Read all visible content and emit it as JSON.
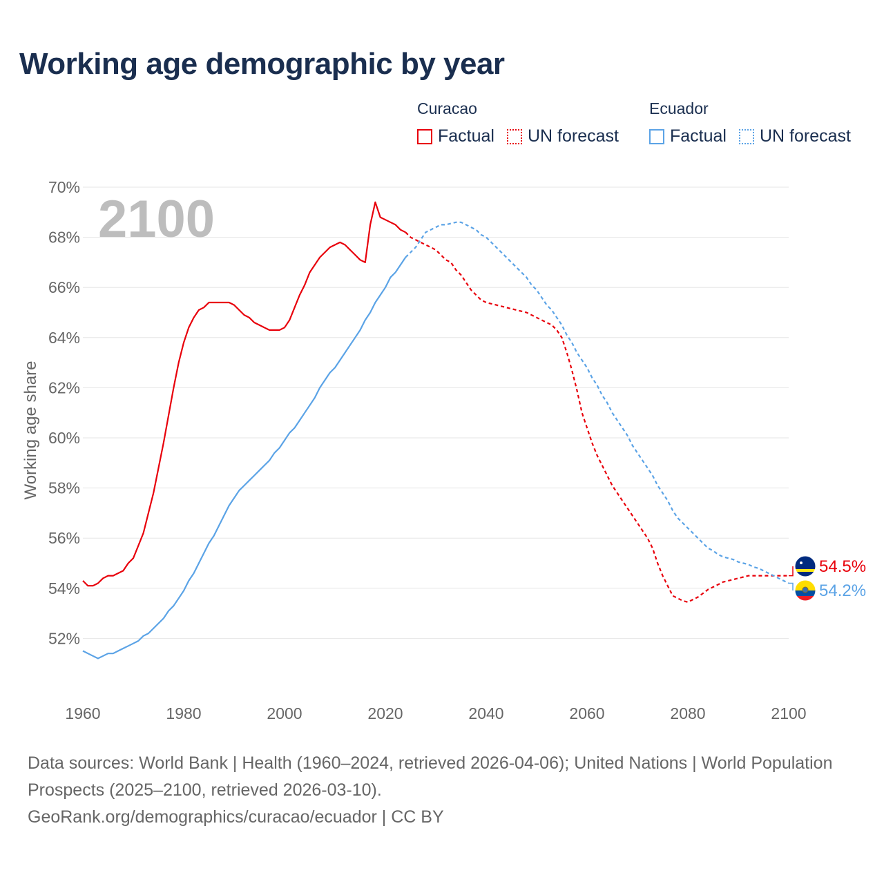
{
  "title": "Working age demographic by year",
  "legend": {
    "curacao": {
      "country": "Curacao",
      "factual": "Factual",
      "forecast": "UN forecast",
      "color": "#e8000b"
    },
    "ecuador": {
      "country": "Ecuador",
      "factual": "Factual",
      "forecast": "UN forecast",
      "color": "#5ba3e6"
    }
  },
  "year_label": "2100",
  "footer": {
    "sources": "Data sources: World Bank | Health (1960–2024, retrieved 2026-04-06); United Nations | World Population Prospects (2025–2100, retrieved 2026-03-10).",
    "link": "GeoRank.org/demographics/curacao/ecuador | CC BY"
  },
  "end_labels": {
    "curacao": "54.5%",
    "ecuador": "54.2%"
  },
  "chart_data": {
    "type": "line",
    "title": "Working age demographic by year",
    "xlabel": "",
    "ylabel": "Working age share",
    "xlim": [
      1960,
      2100
    ],
    "ylim": [
      50,
      70
    ],
    "x_ticks": [
      1960,
      1980,
      2000,
      2020,
      2040,
      2060,
      2080,
      2100
    ],
    "y_ticks": [
      52,
      54,
      56,
      58,
      60,
      62,
      64,
      66,
      68,
      70
    ],
    "y_tick_labels": [
      "52%",
      "54%",
      "56%",
      "58%",
      "60%",
      "62%",
      "64%",
      "66%",
      "68%",
      "70%"
    ],
    "forecast_start": 2024,
    "series": [
      {
        "name": "Curacao",
        "color": "#e8000b",
        "points": [
          [
            1960,
            54.3
          ],
          [
            1961,
            54.1
          ],
          [
            1962,
            54.1
          ],
          [
            1963,
            54.2
          ],
          [
            1964,
            54.4
          ],
          [
            1965,
            54.5
          ],
          [
            1966,
            54.5
          ],
          [
            1967,
            54.6
          ],
          [
            1968,
            54.7
          ],
          [
            1969,
            55.0
          ],
          [
            1970,
            55.2
          ],
          [
            1971,
            55.7
          ],
          [
            1972,
            56.2
          ],
          [
            1973,
            57.0
          ],
          [
            1974,
            57.8
          ],
          [
            1975,
            58.8
          ],
          [
            1976,
            59.8
          ],
          [
            1977,
            60.9
          ],
          [
            1978,
            62.0
          ],
          [
            1979,
            63.0
          ],
          [
            1980,
            63.8
          ],
          [
            1981,
            64.4
          ],
          [
            1982,
            64.8
          ],
          [
            1983,
            65.1
          ],
          [
            1984,
            65.2
          ],
          [
            1985,
            65.4
          ],
          [
            1986,
            65.4
          ],
          [
            1987,
            65.4
          ],
          [
            1988,
            65.4
          ],
          [
            1989,
            65.4
          ],
          [
            1990,
            65.3
          ],
          [
            1991,
            65.1
          ],
          [
            1992,
            64.9
          ],
          [
            1993,
            64.8
          ],
          [
            1994,
            64.6
          ],
          [
            1995,
            64.5
          ],
          [
            1996,
            64.4
          ],
          [
            1997,
            64.3
          ],
          [
            1998,
            64.3
          ],
          [
            1999,
            64.3
          ],
          [
            2000,
            64.4
          ],
          [
            2001,
            64.7
          ],
          [
            2002,
            65.2
          ],
          [
            2003,
            65.7
          ],
          [
            2004,
            66.1
          ],
          [
            2005,
            66.6
          ],
          [
            2006,
            66.9
          ],
          [
            2007,
            67.2
          ],
          [
            2008,
            67.4
          ],
          [
            2009,
            67.6
          ],
          [
            2010,
            67.7
          ],
          [
            2011,
            67.8
          ],
          [
            2012,
            67.7
          ],
          [
            2013,
            67.5
          ],
          [
            2014,
            67.3
          ],
          [
            2015,
            67.1
          ],
          [
            2016,
            67.0
          ],
          [
            2017,
            68.5
          ],
          [
            2018,
            69.4
          ],
          [
            2019,
            68.8
          ],
          [
            2020,
            68.7
          ],
          [
            2021,
            68.6
          ],
          [
            2022,
            68.5
          ],
          [
            2023,
            68.3
          ],
          [
            2024,
            68.2
          ],
          [
            2025,
            68.0
          ],
          [
            2026,
            67.9
          ],
          [
            2027,
            67.8
          ],
          [
            2028,
            67.7
          ],
          [
            2029,
            67.6
          ],
          [
            2030,
            67.5
          ],
          [
            2031,
            67.3
          ],
          [
            2032,
            67.1
          ],
          [
            2033,
            67.0
          ],
          [
            2034,
            66.7
          ],
          [
            2035,
            66.5
          ],
          [
            2036,
            66.2
          ],
          [
            2037,
            65.9
          ],
          [
            2038,
            65.7
          ],
          [
            2039,
            65.5
          ],
          [
            2040,
            65.4
          ],
          [
            2041,
            65.35
          ],
          [
            2042,
            65.3
          ],
          [
            2043,
            65.25
          ],
          [
            2044,
            65.2
          ],
          [
            2045,
            65.15
          ],
          [
            2046,
            65.1
          ],
          [
            2047,
            65.05
          ],
          [
            2048,
            65.0
          ],
          [
            2049,
            64.9
          ],
          [
            2050,
            64.8
          ],
          [
            2051,
            64.7
          ],
          [
            2052,
            64.6
          ],
          [
            2053,
            64.5
          ],
          [
            2054,
            64.3
          ],
          [
            2055,
            64.0
          ],
          [
            2056,
            63.4
          ],
          [
            2057,
            62.7
          ],
          [
            2058,
            61.9
          ],
          [
            2059,
            61.0
          ],
          [
            2060,
            60.4
          ],
          [
            2061,
            59.8
          ],
          [
            2062,
            59.3
          ],
          [
            2063,
            58.9
          ],
          [
            2064,
            58.5
          ],
          [
            2065,
            58.1
          ],
          [
            2066,
            57.8
          ],
          [
            2067,
            57.5
          ],
          [
            2068,
            57.2
          ],
          [
            2069,
            56.9
          ],
          [
            2070,
            56.6
          ],
          [
            2071,
            56.3
          ],
          [
            2072,
            56.0
          ],
          [
            2073,
            55.6
          ],
          [
            2074,
            55.0
          ],
          [
            2075,
            54.5
          ],
          [
            2076,
            54.1
          ],
          [
            2077,
            53.7
          ],
          [
            2078,
            53.6
          ],
          [
            2079,
            53.5
          ],
          [
            2080,
            53.45
          ],
          [
            2081,
            53.55
          ],
          [
            2082,
            53.65
          ],
          [
            2083,
            53.8
          ],
          [
            2084,
            53.95
          ],
          [
            2085,
            54.05
          ],
          [
            2086,
            54.15
          ],
          [
            2087,
            54.25
          ],
          [
            2088,
            54.3
          ],
          [
            2089,
            54.35
          ],
          [
            2090,
            54.4
          ],
          [
            2091,
            54.45
          ],
          [
            2092,
            54.5
          ],
          [
            2093,
            54.5
          ],
          [
            2094,
            54.5
          ],
          [
            2095,
            54.5
          ],
          [
            2096,
            54.5
          ],
          [
            2097,
            54.5
          ],
          [
            2098,
            54.5
          ],
          [
            2099,
            54.5
          ],
          [
            2100,
            54.5
          ]
        ]
      },
      {
        "name": "Ecuador",
        "color": "#5ba3e6",
        "points": [
          [
            1960,
            51.5
          ],
          [
            1961,
            51.4
          ],
          [
            1962,
            51.3
          ],
          [
            1963,
            51.2
          ],
          [
            1964,
            51.3
          ],
          [
            1965,
            51.4
          ],
          [
            1966,
            51.4
          ],
          [
            1967,
            51.5
          ],
          [
            1968,
            51.6
          ],
          [
            1969,
            51.7
          ],
          [
            1970,
            51.8
          ],
          [
            1971,
            51.9
          ],
          [
            1972,
            52.1
          ],
          [
            1973,
            52.2
          ],
          [
            1974,
            52.4
          ],
          [
            1975,
            52.6
          ],
          [
            1976,
            52.8
          ],
          [
            1977,
            53.1
          ],
          [
            1978,
            53.3
          ],
          [
            1979,
            53.6
          ],
          [
            1980,
            53.9
          ],
          [
            1981,
            54.3
          ],
          [
            1982,
            54.6
          ],
          [
            1983,
            55.0
          ],
          [
            1984,
            55.4
          ],
          [
            1985,
            55.8
          ],
          [
            1986,
            56.1
          ],
          [
            1987,
            56.5
          ],
          [
            1988,
            56.9
          ],
          [
            1989,
            57.3
          ],
          [
            1990,
            57.6
          ],
          [
            1991,
            57.9
          ],
          [
            1992,
            58.1
          ],
          [
            1993,
            58.3
          ],
          [
            1994,
            58.5
          ],
          [
            1995,
            58.7
          ],
          [
            1996,
            58.9
          ],
          [
            1997,
            59.1
          ],
          [
            1998,
            59.4
          ],
          [
            1999,
            59.6
          ],
          [
            2000,
            59.9
          ],
          [
            2001,
            60.2
          ],
          [
            2002,
            60.4
          ],
          [
            2003,
            60.7
          ],
          [
            2004,
            61.0
          ],
          [
            2005,
            61.3
          ],
          [
            2006,
            61.6
          ],
          [
            2007,
            62.0
          ],
          [
            2008,
            62.3
          ],
          [
            2009,
            62.6
          ],
          [
            2010,
            62.8
          ],
          [
            2011,
            63.1
          ],
          [
            2012,
            63.4
          ],
          [
            2013,
            63.7
          ],
          [
            2014,
            64.0
          ],
          [
            2015,
            64.3
          ],
          [
            2016,
            64.7
          ],
          [
            2017,
            65.0
          ],
          [
            2018,
            65.4
          ],
          [
            2019,
            65.7
          ],
          [
            2020,
            66.0
          ],
          [
            2021,
            66.4
          ],
          [
            2022,
            66.6
          ],
          [
            2023,
            66.9
          ],
          [
            2024,
            67.2
          ],
          [
            2025,
            67.4
          ],
          [
            2026,
            67.6
          ],
          [
            2027,
            67.9
          ],
          [
            2028,
            68.2
          ],
          [
            2029,
            68.3
          ],
          [
            2030,
            68.4
          ],
          [
            2031,
            68.5
          ],
          [
            2032,
            68.5
          ],
          [
            2033,
            68.55
          ],
          [
            2034,
            68.6
          ],
          [
            2035,
            68.6
          ],
          [
            2036,
            68.5
          ],
          [
            2037,
            68.4
          ],
          [
            2038,
            68.3
          ],
          [
            2039,
            68.1
          ],
          [
            2040,
            68.0
          ],
          [
            2041,
            67.8
          ],
          [
            2042,
            67.6
          ],
          [
            2043,
            67.4
          ],
          [
            2044,
            67.2
          ],
          [
            2045,
            67.0
          ],
          [
            2046,
            66.8
          ],
          [
            2047,
            66.6
          ],
          [
            2048,
            66.4
          ],
          [
            2049,
            66.1
          ],
          [
            2050,
            65.9
          ],
          [
            2051,
            65.6
          ],
          [
            2052,
            65.3
          ],
          [
            2053,
            65.1
          ],
          [
            2054,
            64.8
          ],
          [
            2055,
            64.5
          ],
          [
            2056,
            64.1
          ],
          [
            2057,
            63.8
          ],
          [
            2058,
            63.4
          ],
          [
            2059,
            63.1
          ],
          [
            2060,
            62.8
          ],
          [
            2061,
            62.4
          ],
          [
            2062,
            62.1
          ],
          [
            2063,
            61.7
          ],
          [
            2064,
            61.4
          ],
          [
            2065,
            61.0
          ],
          [
            2066,
            60.7
          ],
          [
            2067,
            60.4
          ],
          [
            2068,
            60.1
          ],
          [
            2069,
            59.7
          ],
          [
            2070,
            59.4
          ],
          [
            2071,
            59.1
          ],
          [
            2072,
            58.8
          ],
          [
            2073,
            58.5
          ],
          [
            2074,
            58.1
          ],
          [
            2075,
            57.8
          ],
          [
            2076,
            57.5
          ],
          [
            2077,
            57.1
          ],
          [
            2078,
            56.8
          ],
          [
            2079,
            56.6
          ],
          [
            2080,
            56.4
          ],
          [
            2081,
            56.2
          ],
          [
            2082,
            56.0
          ],
          [
            2083,
            55.8
          ],
          [
            2084,
            55.6
          ],
          [
            2085,
            55.5
          ],
          [
            2086,
            55.35
          ],
          [
            2087,
            55.25
          ],
          [
            2088,
            55.2
          ],
          [
            2089,
            55.15
          ],
          [
            2090,
            55.05
          ],
          [
            2091,
            55.0
          ],
          [
            2092,
            54.95
          ],
          [
            2093,
            54.85
          ],
          [
            2094,
            54.8
          ],
          [
            2095,
            54.7
          ],
          [
            2096,
            54.6
          ],
          [
            2097,
            54.5
          ],
          [
            2098,
            54.4
          ],
          [
            2099,
            54.3
          ],
          [
            2100,
            54.2
          ]
        ]
      }
    ]
  }
}
